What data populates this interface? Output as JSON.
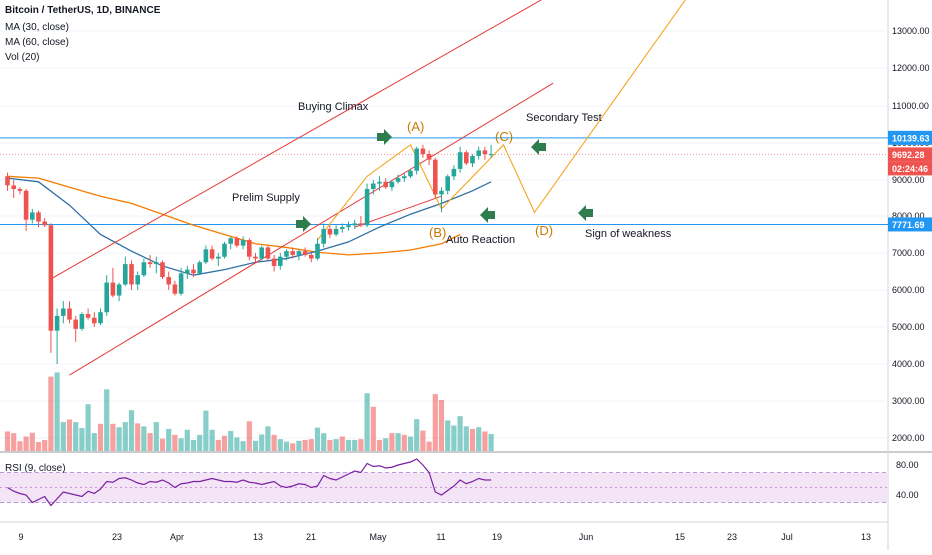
{
  "header": {
    "symbol": "Bitcoin / TetherUS, 1D, BINANCE",
    "indicators": [
      "MA (30, close)",
      "MA (60, close)",
      "Vol (20)"
    ],
    "rsi_label": "RSI (9, close)"
  },
  "annotations": {
    "buying_climax": "Buying Climax",
    "prelim_supply": "Prelim Supply",
    "secondary_test": "Secondary Test",
    "auto_reaction": "Auto Reaction",
    "sign_of_weakness": "Sign of weakness",
    "point_a": "(A)",
    "point_b": "(B)",
    "point_c": "(C)",
    "point_d": "(D)"
  },
  "price_tags": {
    "resistance": "10139.63",
    "last_price": "9692.28",
    "countdown": "02:24:46",
    "support": "7771.69"
  },
  "colors": {
    "up": "#26a69a",
    "down": "#ef5350",
    "channel": "#e53935",
    "projection": "#f5a623",
    "ma30": "#2f6fa6",
    "ma60": "#f57c00",
    "horizontal_level": "#2196f3",
    "arrow": "#2e7d4f",
    "rsi_line": "#7b1fa2",
    "rsi_band": "#f3e5f5"
  },
  "chart_data": [
    {
      "type": "candlestick",
      "title": "Bitcoin / TetherUS, 1D, BINANCE",
      "x_ticks": [
        "9",
        "23",
        "Apr",
        "13",
        "21",
        "May",
        "11",
        "19",
        "Jun",
        "15",
        "23",
        "Jul",
        "13"
      ],
      "y_ticks": [
        2000,
        3000,
        4000,
        5000,
        6000,
        7000,
        8000,
        9000,
        10000,
        11000,
        12000,
        13000
      ],
      "ylim": [
        1750,
        14000
      ],
      "horizontal_levels": [
        10139.63,
        7771.69
      ],
      "ohlc": [
        [
          9100,
          9200,
          8700,
          8850
        ],
        [
          8850,
          9000,
          8500,
          8750
        ],
        [
          8750,
          8800,
          8600,
          8700
        ],
        [
          8700,
          8750,
          7600,
          7900
        ],
        [
          7900,
          8200,
          7800,
          8100
        ],
        [
          8100,
          8150,
          7700,
          7850
        ],
        [
          7850,
          7950,
          7700,
          7750
        ],
        [
          7750,
          7800,
          4300,
          4900
        ],
        [
          4900,
          5500,
          4000,
          5300
        ],
        [
          5300,
          5700,
          5100,
          5500
        ],
        [
          5500,
          5700,
          5100,
          5200
        ],
        [
          5200,
          5300,
          4600,
          4950
        ],
        [
          4950,
          5400,
          4900,
          5350
        ],
        [
          5350,
          5500,
          5200,
          5250
        ],
        [
          5250,
          5400,
          5000,
          5100
        ],
        [
          5100,
          5500,
          5050,
          5400
        ],
        [
          5400,
          6400,
          5300,
          6200
        ],
        [
          6200,
          6600,
          5800,
          5850
        ],
        [
          5850,
          6200,
          5700,
          6150
        ],
        [
          6150,
          6900,
          6100,
          6700
        ],
        [
          6700,
          6800,
          6000,
          6150
        ],
        [
          6150,
          6500,
          6000,
          6400
        ],
        [
          6400,
          6850,
          6350,
          6750
        ],
        [
          6750,
          6950,
          6600,
          6700
        ],
        [
          6700,
          6900,
          6450,
          6750
        ],
        [
          6750,
          6800,
          6300,
          6350
        ],
        [
          6350,
          6500,
          6000,
          6150
        ],
        [
          6150,
          6250,
          5850,
          5900
        ],
        [
          5900,
          6600,
          5850,
          6450
        ],
        [
          6450,
          6650,
          6300,
          6550
        ],
        [
          6550,
          6700,
          6350,
          6450
        ],
        [
          6450,
          6800,
          6400,
          6750
        ],
        [
          6750,
          7200,
          6700,
          7100
        ],
        [
          7100,
          7200,
          6800,
          6850
        ],
        [
          6850,
          7000,
          6650,
          6900
        ],
        [
          6900,
          7300,
          6850,
          7250
        ],
        [
          7250,
          7450,
          7100,
          7400
        ],
        [
          7400,
          7450,
          7150,
          7200
        ],
        [
          7200,
          7450,
          7100,
          7350
        ],
        [
          7350,
          7400,
          6800,
          6900
        ],
        [
          6900,
          7000,
          6750,
          6850
        ],
        [
          6850,
          7200,
          6800,
          7150
        ],
        [
          7150,
          7200,
          6800,
          6850
        ],
        [
          6850,
          6950,
          6500,
          6650
        ],
        [
          6650,
          7000,
          6550,
          6900
        ],
        [
          6900,
          7100,
          6800,
          7050
        ],
        [
          7050,
          7150,
          6850,
          6950
        ],
        [
          6950,
          7100,
          6800,
          7050
        ],
        [
          7050,
          7150,
          6900,
          6950
        ],
        [
          6950,
          7000,
          6750,
          6850
        ],
        [
          6850,
          7400,
          6800,
          7250
        ],
        [
          7250,
          7800,
          7150,
          7650
        ],
        [
          7650,
          7750,
          7400,
          7500
        ],
        [
          7500,
          7750,
          7450,
          7650
        ],
        [
          7650,
          7800,
          7550,
          7700
        ],
        [
          7700,
          7850,
          7600,
          7750
        ],
        [
          7750,
          7900,
          7650,
          7800
        ],
        [
          7800,
          8000,
          7700,
          7750
        ],
        [
          7750,
          8900,
          7700,
          8750
        ],
        [
          8750,
          9000,
          8600,
          8900
        ],
        [
          8900,
          9100,
          8700,
          8950
        ],
        [
          8950,
          9050,
          8750,
          8800
        ],
        [
          8800,
          9000,
          8700,
          8950
        ],
        [
          8950,
          9150,
          8900,
          9050
        ],
        [
          9050,
          9200,
          8950,
          9100
        ],
        [
          9100,
          9300,
          9050,
          9250
        ],
        [
          9250,
          9900,
          9150,
          9850
        ],
        [
          9850,
          9950,
          9600,
          9700
        ],
        [
          9700,
          9800,
          9400,
          9550
        ],
        [
          9550,
          9600,
          8500,
          8600
        ],
        [
          8600,
          8800,
          8100,
          8700
        ],
        [
          8700,
          9150,
          8600,
          9100
        ],
        [
          9100,
          9400,
          9000,
          9300
        ],
        [
          9300,
          9900,
          9200,
          9750
        ],
        [
          9750,
          9800,
          9400,
          9450
        ],
        [
          9450,
          9700,
          9350,
          9650
        ],
        [
          9650,
          9900,
          9550,
          9800
        ],
        [
          9800,
          9900,
          9550,
          9700
        ],
        [
          9700,
          9950,
          9600,
          9700
        ]
      ],
      "volume": [
        [
          460,
          "down"
        ],
        [
          420,
          "down"
        ],
        [
          230,
          "down"
        ],
        [
          340,
          "down"
        ],
        [
          430,
          "down"
        ],
        [
          210,
          "down"
        ],
        [
          260,
          "down"
        ],
        [
          1750,
          "down"
        ],
        [
          1850,
          "up"
        ],
        [
          680,
          "up"
        ],
        [
          740,
          "down"
        ],
        [
          680,
          "up"
        ],
        [
          540,
          "up"
        ],
        [
          1100,
          "up"
        ],
        [
          420,
          "up"
        ],
        [
          640,
          "down"
        ],
        [
          1450,
          "up"
        ],
        [
          640,
          "down"
        ],
        [
          560,
          "up"
        ],
        [
          680,
          "up"
        ],
        [
          960,
          "up"
        ],
        [
          650,
          "down"
        ],
        [
          580,
          "up"
        ],
        [
          420,
          "down"
        ],
        [
          680,
          "up"
        ],
        [
          290,
          "down"
        ],
        [
          520,
          "up"
        ],
        [
          380,
          "down"
        ],
        [
          300,
          "up"
        ],
        [
          500,
          "up"
        ],
        [
          260,
          "up"
        ],
        [
          380,
          "up"
        ],
        [
          950,
          "up"
        ],
        [
          500,
          "up"
        ],
        [
          260,
          "down"
        ],
        [
          360,
          "down"
        ],
        [
          470,
          "up"
        ],
        [
          320,
          "up"
        ],
        [
          230,
          "up"
        ],
        [
          700,
          "down"
        ],
        [
          240,
          "up"
        ],
        [
          390,
          "up"
        ],
        [
          580,
          "up"
        ],
        [
          380,
          "down"
        ],
        [
          280,
          "up"
        ],
        [
          220,
          "up"
        ],
        [
          180,
          "down"
        ],
        [
          240,
          "up"
        ],
        [
          260,
          "down"
        ],
        [
          280,
          "down"
        ],
        [
          550,
          "up"
        ],
        [
          420,
          "up"
        ],
        [
          260,
          "down"
        ],
        [
          280,
          "up"
        ],
        [
          340,
          "down"
        ],
        [
          260,
          "up"
        ],
        [
          260,
          "up"
        ],
        [
          280,
          "down"
        ],
        [
          1360,
          "up"
        ],
        [
          1040,
          "down"
        ],
        [
          260,
          "down"
        ],
        [
          300,
          "up"
        ],
        [
          420,
          "down"
        ],
        [
          420,
          "up"
        ],
        [
          380,
          "down"
        ],
        [
          340,
          "up"
        ],
        [
          750,
          "up"
        ],
        [
          480,
          "down"
        ],
        [
          220,
          "down"
        ],
        [
          1340,
          "down"
        ],
        [
          1200,
          "down"
        ],
        [
          720,
          "up"
        ],
        [
          600,
          "up"
        ],
        [
          820,
          "up"
        ],
        [
          580,
          "up"
        ],
        [
          520,
          "down"
        ],
        [
          560,
          "up"
        ],
        [
          460,
          "down"
        ],
        [
          400,
          "up"
        ]
      ],
      "ma30": [
        [
          0,
          9050
        ],
        [
          5,
          8950
        ],
        [
          10,
          8300
        ],
        [
          15,
          7500
        ],
        [
          20,
          7050
        ],
        [
          25,
          6650
        ],
        [
          30,
          6400
        ],
        [
          35,
          6550
        ],
        [
          40,
          6750
        ],
        [
          45,
          6850
        ],
        [
          50,
          7050
        ],
        [
          55,
          7300
        ],
        [
          60,
          7700
        ],
        [
          65,
          8050
        ],
        [
          70,
          8350
        ],
        [
          75,
          8700
        ],
        [
          78,
          8950
        ]
      ],
      "ma60": [
        [
          0,
          9100
        ],
        [
          5,
          9050
        ],
        [
          10,
          8800
        ],
        [
          15,
          8550
        ],
        [
          20,
          8350
        ],
        [
          25,
          8050
        ],
        [
          30,
          7750
        ],
        [
          35,
          7500
        ],
        [
          40,
          7250
        ],
        [
          45,
          7150
        ],
        [
          50,
          7020
        ],
        [
          55,
          6950
        ],
        [
          60,
          7000
        ],
        [
          65,
          7080
        ],
        [
          70,
          7250
        ],
        [
          73,
          7500
        ]
      ],
      "channel_upper": [
        [
          7,
          6300
        ],
        [
          93,
          14500
        ]
      ],
      "channel_lower": [
        [
          10,
          3700
        ],
        [
          88,
          11600
        ]
      ],
      "projection": [
        [
          50,
          7350
        ],
        [
          58,
          9100
        ],
        [
          65,
          9950
        ],
        [
          70,
          8200
        ],
        [
          80,
          9950
        ],
        [
          85,
          8100
        ],
        [
          110,
          14000
        ]
      ],
      "volume_ylim": [
        0,
        2000
      ]
    },
    {
      "type": "line",
      "title": "RSI (9, close)",
      "y_ticks": [
        40,
        80
      ],
      "ylim": [
        10,
        95
      ],
      "band": [
        30,
        70
      ],
      "values": [
        50,
        45,
        42,
        40,
        30,
        34,
        38,
        26,
        35,
        44,
        42,
        40,
        38,
        45,
        42,
        48,
        58,
        57,
        62,
        63,
        60,
        56,
        54,
        58,
        57,
        60,
        56,
        50,
        55,
        56,
        58,
        58,
        60,
        62,
        60,
        58,
        58,
        57,
        60,
        57,
        56,
        54,
        56,
        58,
        52,
        50,
        52,
        55,
        54,
        50,
        52,
        66,
        62,
        60,
        64,
        68,
        72,
        70,
        82,
        78,
        79,
        76,
        77,
        80,
        82,
        84,
        88,
        80,
        70,
        44,
        40,
        46,
        52,
        60,
        55,
        58,
        62,
        60,
        60
      ]
    }
  ]
}
